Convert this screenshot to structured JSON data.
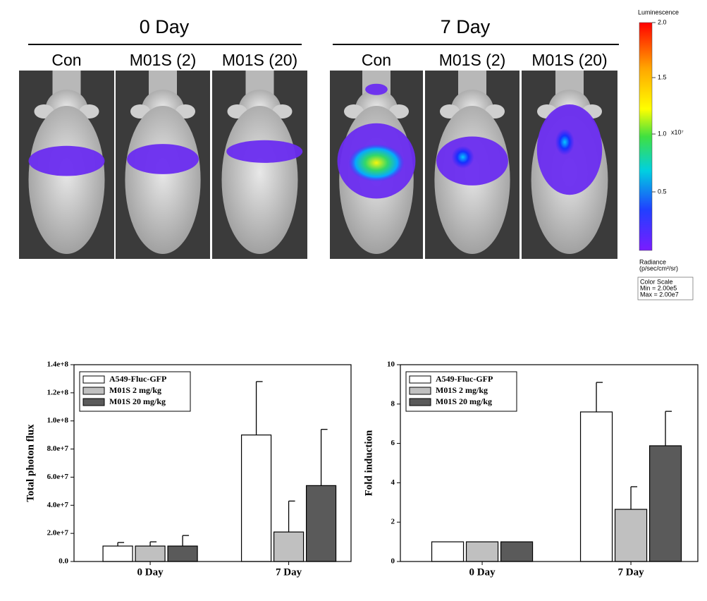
{
  "imaging": {
    "groups": [
      {
        "title": "0 Day",
        "labels": [
          "Con",
          "M01S (2)",
          "M01S (20)"
        ]
      },
      {
        "title": "7 Day",
        "labels": [
          "Con",
          "M01S (2)",
          "M01S (20)"
        ]
      }
    ],
    "colorbar": {
      "title": "Luminescence",
      "ticks": [
        "2.0",
        "1.5",
        "1.0",
        "0.5"
      ],
      "exponent": "x10⁷",
      "unit_title": "Radiance",
      "unit": "(p/sec/cm²/sr)",
      "scale_title": "Color Scale",
      "min": "Min = 2.00e5",
      "max": "Max = 2.00e7"
    }
  },
  "chart_data": [
    {
      "type": "bar",
      "ylabel": "Total photon flux",
      "categories": [
        "0 Day",
        "7 Day"
      ],
      "series": [
        {
          "name": "A549-Fluc-GFP",
          "color": "#ffffff",
          "values": [
            11000000,
            90000000
          ],
          "errors": [
            2500000,
            38000000
          ]
        },
        {
          "name": "M01S 2 mg/kg",
          "color": "#c0c0c0",
          "values": [
            11000000,
            21000000
          ],
          "errors": [
            3000000,
            22000000
          ]
        },
        {
          "name": "M01S 20 mg/kg",
          "color": "#5a5a5a",
          "values": [
            11000000,
            54000000
          ],
          "errors": [
            7500000,
            40000000
          ]
        }
      ],
      "ylim": [
        0,
        140000000
      ],
      "yticks": [
        {
          "value": 0,
          "label": "0.0"
        },
        {
          "value": 20000000,
          "label": "2.0e+7"
        },
        {
          "value": 40000000,
          "label": "4.0e+7"
        },
        {
          "value": 60000000,
          "label": "6.0e+7"
        },
        {
          "value": 80000000,
          "label": "8.0e+7"
        },
        {
          "value": 100000000,
          "label": "1.0e+8"
        },
        {
          "value": 120000000,
          "label": "1.2e+8"
        },
        {
          "value": 140000000,
          "label": "1.4e+8"
        }
      ],
      "legend": "upper left"
    },
    {
      "type": "bar",
      "ylabel": "Fold induction",
      "categories": [
        "0 Day",
        "7 Day"
      ],
      "series": [
        {
          "name": "A549-Fluc-GFP",
          "color": "#ffffff",
          "values": [
            1,
            7.6
          ],
          "errors": [
            null,
            1.5
          ]
        },
        {
          "name": "M01S 2 mg/kg",
          "color": "#c0c0c0",
          "values": [
            1,
            2.65
          ],
          "errors": [
            null,
            1.15
          ]
        },
        {
          "name": "M01S 20 mg/kg",
          "color": "#5a5a5a",
          "values": [
            1,
            5.88
          ],
          "errors": [
            null,
            1.75
          ]
        }
      ],
      "ylim": [
        0,
        10
      ],
      "yticks": [
        0,
        2,
        4,
        6,
        8,
        10
      ],
      "legend": "upper left"
    }
  ]
}
